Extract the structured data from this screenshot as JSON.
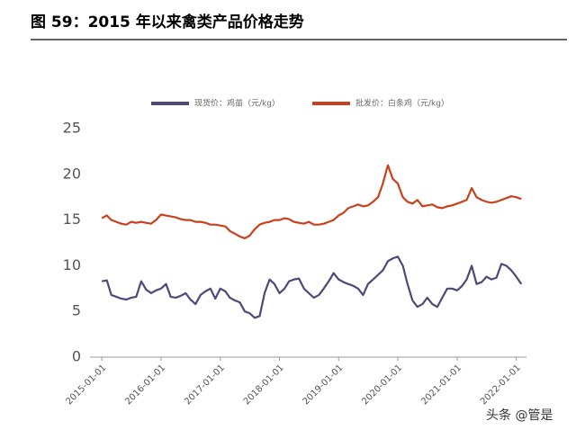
{
  "chart_data": {
    "type": "line",
    "title": "图 59：2015 年以来禽类产品价格走势",
    "watermark": "头条 @管是",
    "x": [
      "2015-01-01",
      "2015-02-01",
      "2015-03-01",
      "2015-04-01",
      "2015-05-01",
      "2015-06-01",
      "2015-07-01",
      "2015-08-01",
      "2015-09-01",
      "2015-10-01",
      "2015-11-01",
      "2015-12-01",
      "2016-01-01",
      "2016-02-01",
      "2016-03-01",
      "2016-04-01",
      "2016-05-01",
      "2016-06-01",
      "2016-07-01",
      "2016-08-01",
      "2016-09-01",
      "2016-10-01",
      "2016-11-01",
      "2016-12-01",
      "2017-01-01",
      "2017-02-01",
      "2017-03-01",
      "2017-04-01",
      "2017-05-01",
      "2017-06-01",
      "2017-07-01",
      "2017-08-01",
      "2017-09-01",
      "2017-10-01",
      "2017-11-01",
      "2017-12-01",
      "2018-01-01",
      "2018-02-01",
      "2018-03-01",
      "2018-04-01",
      "2018-05-01",
      "2018-06-01",
      "2018-07-01",
      "2018-08-01",
      "2018-09-01",
      "2018-10-01",
      "2018-11-01",
      "2018-12-01",
      "2019-01-01",
      "2019-02-01",
      "2019-03-01",
      "2019-04-01",
      "2019-05-01",
      "2019-06-01",
      "2019-07-01",
      "2019-08-01",
      "2019-09-01",
      "2019-10-01",
      "2019-11-01",
      "2019-12-01",
      "2020-01-01",
      "2020-02-01",
      "2020-03-01",
      "2020-04-01",
      "2020-05-01",
      "2020-06-01",
      "2020-07-01",
      "2020-08-01",
      "2020-09-01",
      "2020-10-01",
      "2020-11-01",
      "2020-12-01",
      "2021-01-01",
      "2021-02-01",
      "2021-03-01",
      "2021-04-01",
      "2021-05-01",
      "2021-06-01",
      "2021-07-01",
      "2021-08-01",
      "2021-09-01",
      "2021-10-01",
      "2021-11-01",
      "2021-12-01",
      "2022-01-01",
      "2022-02-01"
    ],
    "series": [
      {
        "name": "现货价：鸡苗（元/kg）",
        "color": "#4b4a78",
        "values": [
          8.3,
          8.4,
          6.8,
          6.6,
          6.4,
          6.3,
          6.5,
          6.6,
          8.3,
          7.4,
          7.0,
          7.3,
          7.5,
          8.0,
          6.6,
          6.5,
          6.7,
          7.0,
          6.3,
          5.8,
          6.8,
          7.2,
          7.5,
          6.4,
          7.5,
          7.2,
          6.5,
          6.2,
          6.0,
          5.0,
          4.8,
          4.3,
          4.5,
          7.0,
          8.5,
          8.0,
          7.0,
          7.5,
          8.3,
          8.5,
          8.6,
          7.5,
          7.0,
          6.5,
          6.8,
          7.5,
          8.3,
          9.2,
          8.5,
          8.2,
          8.0,
          7.8,
          7.5,
          6.8,
          8.0,
          8.5,
          9.0,
          9.5,
          10.5,
          10.8,
          11.0,
          10.0,
          8.0,
          6.2,
          5.5,
          5.8,
          6.5,
          5.8,
          5.5,
          6.5,
          7.5,
          7.5,
          7.3,
          7.8,
          8.5,
          10.0,
          8.0,
          8.2,
          8.8,
          8.5,
          8.7,
          10.2,
          10.0,
          9.5,
          8.8,
          8.0
        ]
      },
      {
        "name": "批发价：白条鸡（元/kg）",
        "color": "#c9401c",
        "values": [
          15.2,
          15.5,
          15.0,
          14.8,
          14.6,
          14.5,
          14.8,
          14.7,
          14.8,
          14.7,
          14.6,
          15.0,
          15.6,
          15.5,
          15.4,
          15.3,
          15.1,
          15.0,
          15.0,
          14.8,
          14.8,
          14.7,
          14.5,
          14.5,
          14.4,
          14.3,
          13.8,
          13.5,
          13.2,
          13.0,
          13.3,
          14.0,
          14.5,
          14.7,
          14.8,
          15.0,
          15.0,
          15.2,
          15.1,
          14.8,
          14.7,
          14.6,
          14.8,
          14.5,
          14.5,
          14.6,
          14.8,
          15.0,
          15.5,
          15.8,
          16.3,
          16.5,
          16.7,
          16.5,
          16.6,
          17.0,
          17.5,
          19.0,
          21.0,
          19.5,
          19.0,
          17.5,
          17.0,
          16.8,
          17.2,
          16.5,
          16.6,
          16.7,
          16.4,
          16.3,
          16.5,
          16.6,
          16.8,
          17.0,
          17.2,
          18.5,
          17.5,
          17.2,
          17.0,
          16.9,
          17.0,
          17.2,
          17.4,
          17.6,
          17.5,
          17.3
        ]
      }
    ],
    "xlim": [
      "2014-10-20",
      "2022-03-05"
    ],
    "xticks": [
      "2015-01-01",
      "2016-01-01",
      "2017-01-01",
      "2018-01-01",
      "2019-01-01",
      "2020-01-01",
      "2021-01-01",
      "2022-01-01"
    ],
    "ylim": [
      0,
      25
    ],
    "yticks": [
      0,
      5,
      10,
      15,
      20,
      25
    ],
    "grid": false
  }
}
